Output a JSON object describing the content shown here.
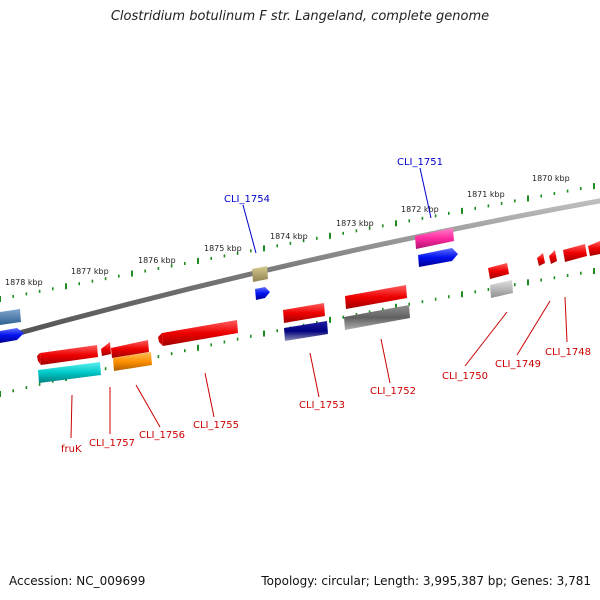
{
  "title": "Clostridium botulinum F str. Langeland, complete genome",
  "footer": {
    "accession": "Accession: NC_009699",
    "summary": "Topology: circular; Length: 3,995,387 bp; Genes: 3,781"
  },
  "colors": {
    "backbone": "#7a7a7a",
    "tick": "#1e8c1e",
    "label_top": "#0000cc",
    "label_bottom": "#cc0000"
  },
  "kbp_labels": [
    "1878 kbp",
    "1877 kbp",
    "1876 kbp",
    "1875 kbp",
    "1874 kbp",
    "1873 kbp",
    "1872 kbp",
    "1871 kbp",
    "1870 kbp"
  ],
  "gene_labels": {
    "top": [
      "CLI_1754",
      "CLI_1751"
    ],
    "bottom": [
      "fruK",
      "CLI_1757",
      "CLI_1756",
      "CLI_1755",
      "CLI_1753",
      "CLI_1752",
      "CLI_1750",
      "CLI_1749",
      "CLI_1748"
    ]
  }
}
